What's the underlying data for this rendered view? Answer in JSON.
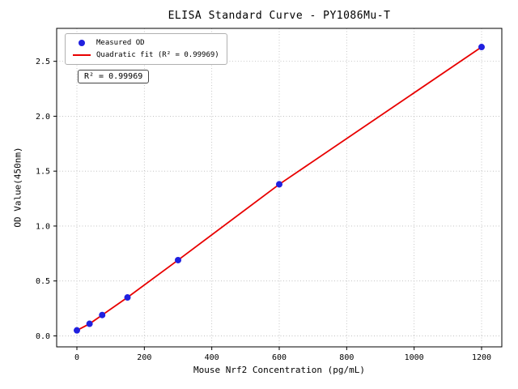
{
  "chart_data": {
    "type": "scatter",
    "title": "ELISA Standard Curve - PY1086Mu-T",
    "xlabel": "Mouse Nrf2 Concentration (pg/mL)",
    "ylabel": "OD Value(450nm)",
    "annotation": "R² = 0.99969",
    "xlim": [
      -60,
      1260
    ],
    "ylim": [
      -0.1,
      2.8
    ],
    "xtick_values": [
      0,
      200,
      400,
      600,
      800,
      1000,
      1200
    ],
    "xtick_labels": [
      "0",
      "200",
      "400",
      "600",
      "800",
      "1000",
      "1200"
    ],
    "ytick_values": [
      0.0,
      0.5,
      1.0,
      1.5,
      2.0,
      2.5
    ],
    "ytick_labels": [
      "0.0",
      "0.5",
      "1.0",
      "1.5",
      "2.0",
      "2.5"
    ],
    "grid": true,
    "legend_position": "upper-left",
    "colors": {
      "grid": "#b8b8b8",
      "frame": "#000000",
      "ticks": "#000000"
    },
    "series": [
      {
        "name": "Measured OD",
        "type": "scatter",
        "color": "#2020df",
        "x": [
          0,
          37.5,
          75,
          150,
          300,
          600,
          1200
        ],
        "y": [
          0.05,
          0.11,
          0.19,
          0.35,
          0.69,
          1.38,
          2.63
        ]
      },
      {
        "name": "Quadratic fit (R² = 0.99969)",
        "type": "line",
        "color": "#e80000",
        "x": [
          0,
          37.5,
          75,
          150,
          300,
          600,
          1200
        ],
        "y": [
          0.05,
          0.11,
          0.19,
          0.35,
          0.69,
          1.38,
          2.63
        ]
      }
    ]
  }
}
